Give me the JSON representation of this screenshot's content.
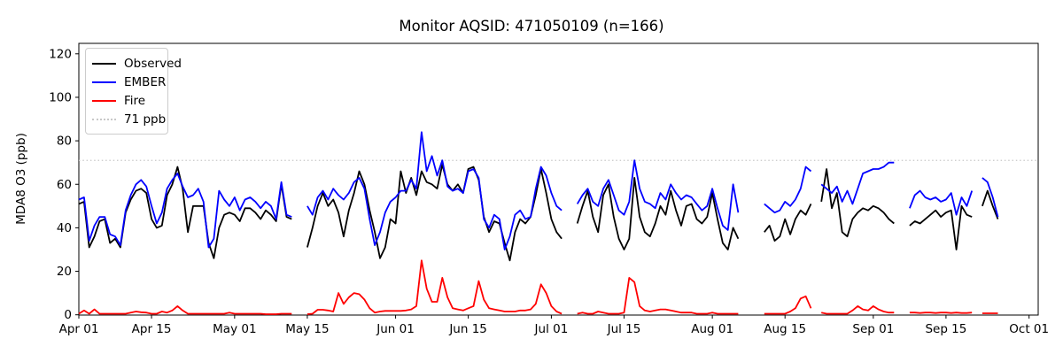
{
  "title": "Monitor AQSID: 471050109 (n=166)",
  "y_axis": {
    "label": "MDA8 O3 (ppb)",
    "ticks": [
      0,
      20,
      40,
      60,
      80,
      100,
      120
    ]
  },
  "x_axis": {
    "tick_labels": [
      "Apr 01",
      "Apr 15",
      "May 01",
      "May 15",
      "Jun 01",
      "Jun 15",
      "Jul 01",
      "Jul 15",
      "Aug 01",
      "Aug 15",
      "Sep 01",
      "Sep 15",
      "Oct 01"
    ],
    "tick_days": [
      0,
      14,
      30,
      44,
      61,
      75,
      91,
      105,
      122,
      136,
      153,
      167,
      183
    ]
  },
  "legend": {
    "position": "upper left",
    "items": [
      {
        "label": "Observed",
        "color": "#000000",
        "style": "solid"
      },
      {
        "label": "EMBER",
        "color": "#0000ff",
        "style": "solid"
      },
      {
        "label": "Fire",
        "color": "#ff0000",
        "style": "solid"
      },
      {
        "label": "71 ppb",
        "color": "#c8c8c8",
        "style": "dotted"
      }
    ]
  },
  "chart_data": {
    "type": "line",
    "x_start": "Apr 01",
    "x_end": "Oct 01",
    "n_days": 183,
    "n_valid": 166,
    "ylim": [
      0,
      124.8
    ],
    "grid": false,
    "reference_line": {
      "value": 71,
      "label": "71 ppb",
      "color": "#c8c8c8",
      "style": "dotted"
    },
    "series": [
      {
        "name": "Observed",
        "color": "#000000",
        "values": [
          51,
          52,
          31,
          36,
          43,
          44,
          33,
          35,
          31,
          47,
          53,
          57,
          58,
          56,
          44,
          40,
          41,
          55,
          60,
          68,
          58,
          38,
          50,
          50,
          50,
          33,
          26,
          40,
          46,
          47,
          46,
          43,
          49,
          49,
          47,
          44,
          48,
          46,
          43,
          60,
          45,
          44,
          null,
          null,
          31,
          40,
          50,
          56,
          50,
          53,
          47,
          36,
          48,
          56,
          66,
          60,
          48,
          38,
          26,
          31,
          44,
          42,
          66,
          56,
          63,
          55,
          66,
          61,
          60,
          58,
          69,
          60,
          57,
          60,
          56,
          67,
          68,
          62,
          45,
          38,
          43,
          42,
          33,
          25,
          38,
          44,
          42,
          45,
          55,
          67,
          56,
          44,
          38,
          35,
          null,
          null,
          42,
          50,
          57,
          45,
          38,
          55,
          60,
          45,
          35,
          30,
          35,
          63,
          45,
          38,
          36,
          42,
          50,
          46,
          57,
          48,
          41,
          50,
          51,
          44,
          42,
          45,
          56,
          44,
          33,
          30,
          40,
          35,
          null,
          null,
          null,
          null,
          38,
          41,
          34,
          36,
          44,
          37,
          44,
          48,
          46,
          51,
          null,
          52,
          67,
          49,
          56,
          38,
          36,
          44,
          47,
          49,
          48,
          50,
          49,
          47,
          44,
          42,
          null,
          null,
          41,
          43,
          42,
          44,
          46,
          48,
          45,
          47,
          48,
          30,
          50,
          46,
          45,
          null,
          50,
          57,
          50,
          44,
          null,
          null,
          null,
          null,
          null
        ]
      },
      {
        "name": "EMBER",
        "color": "#0000ff",
        "values": [
          53,
          54,
          34,
          41,
          45,
          45,
          37,
          36,
          32,
          48,
          55,
          60,
          62,
          59,
          50,
          42,
          47,
          58,
          62,
          65,
          59,
          54,
          55,
          58,
          52,
          31,
          35,
          57,
          53,
          50,
          54,
          48,
          53,
          54,
          52,
          49,
          52,
          50,
          44,
          61,
          46,
          45,
          null,
          null,
          50,
          46,
          54,
          57,
          53,
          58,
          55,
          53,
          56,
          61,
          63,
          58,
          44,
          32,
          38,
          47,
          52,
          54,
          57,
          57,
          62,
          58,
          84,
          66,
          73,
          64,
          71,
          59,
          57,
          58,
          56,
          66,
          67,
          63,
          44,
          40,
          46,
          44,
          30,
          36,
          46,
          48,
          44,
          45,
          58,
          68,
          64,
          56,
          50,
          48,
          null,
          null,
          51,
          55,
          58,
          52,
          50,
          58,
          62,
          55,
          48,
          46,
          52,
          71,
          58,
          52,
          51,
          49,
          56,
          53,
          60,
          56,
          53,
          55,
          54,
          51,
          48,
          50,
          58,
          49,
          41,
          39,
          60,
          47,
          null,
          null,
          null,
          null,
          51,
          49,
          47,
          48,
          52,
          50,
          53,
          58,
          68,
          66,
          null,
          60,
          58,
          56,
          59,
          52,
          57,
          51,
          58,
          65,
          66,
          67,
          67,
          68,
          70,
          70,
          null,
          null,
          49,
          55,
          57,
          54,
          53,
          54,
          52,
          53,
          56,
          46,
          54,
          50,
          57,
          null,
          63,
          61,
          54,
          45,
          null,
          null,
          null,
          null,
          null
        ]
      },
      {
        "name": "Fire",
        "color": "#ff0000",
        "values": [
          0.5,
          2,
          0.5,
          2.5,
          0.5,
          0.5,
          0.5,
          0.5,
          0.5,
          0.5,
          1,
          1.5,
          1.2,
          1,
          0.5,
          0.5,
          1.5,
          1,
          2,
          4,
          2,
          0.5,
          0.5,
          0.5,
          0.5,
          0.5,
          0.5,
          0.5,
          0.5,
          1,
          0.5,
          0.5,
          0.5,
          0.5,
          0.5,
          0.5,
          0.3,
          0.3,
          0.3,
          0.5,
          0.5,
          0.5,
          null,
          null,
          0.3,
          0.5,
          2.3,
          2.3,
          2,
          1.5,
          10,
          5,
          8,
          10,
          9.5,
          7,
          3,
          1,
          1.5,
          1.8,
          1.8,
          1.8,
          1.8,
          2,
          2.5,
          4,
          25,
          12,
          6,
          6,
          17,
          8,
          3,
          2.5,
          2,
          3,
          4,
          15.5,
          7,
          3,
          2.5,
          2,
          1.5,
          1.5,
          1.5,
          2,
          2,
          2.5,
          5,
          14,
          10,
          4,
          1.5,
          0.5,
          null,
          null,
          0.5,
          1,
          0.5,
          0.5,
          1.5,
          1,
          0.5,
          0.5,
          0.5,
          1,
          17,
          15,
          4,
          2,
          1.5,
          2,
          2.5,
          2.5,
          2,
          1.5,
          1,
          1,
          1,
          0.5,
          0.5,
          0.5,
          1,
          0.5,
          0.5,
          0.5,
          0.5,
          0.5,
          null,
          null,
          null,
          null,
          0.5,
          0.5,
          0.5,
          0.5,
          0.5,
          1.5,
          3,
          7.5,
          8.5,
          3,
          null,
          1,
          0.5,
          0.5,
          0.5,
          0.5,
          0.5,
          2,
          4,
          2.5,
          2,
          4,
          2.5,
          1.5,
          1,
          1,
          null,
          null,
          1,
          1,
          0.8,
          1,
          1,
          0.8,
          1,
          1,
          0.8,
          1,
          0.8,
          0.8,
          1,
          null,
          0.7,
          0.7,
          0.7,
          0.7,
          null,
          null,
          null,
          null,
          null
        ]
      }
    ]
  }
}
